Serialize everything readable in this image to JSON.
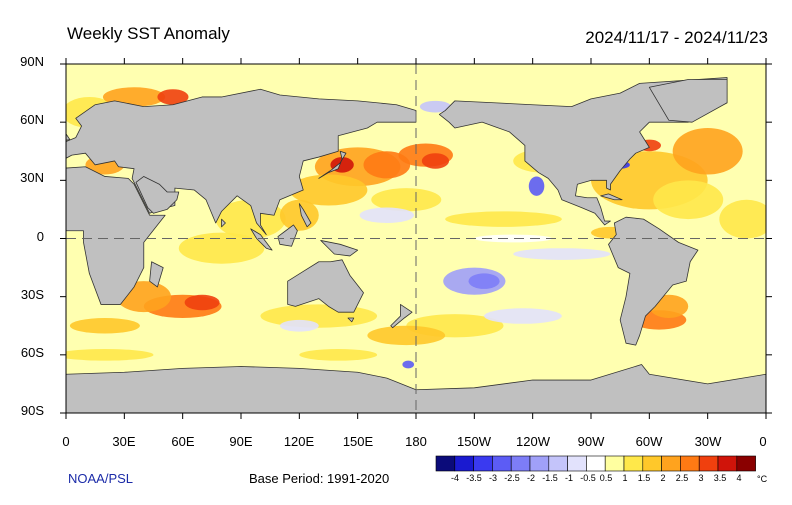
{
  "header": {
    "title": "Weekly SST Anomaly",
    "date_range": "2024/11/17 - 2024/11/23"
  },
  "axes": {
    "y_ticks": [
      "90N",
      "60N",
      "30N",
      "0",
      "30S",
      "60S",
      "90S"
    ],
    "x_ticks": [
      "0",
      "30E",
      "60E",
      "90E",
      "120E",
      "150E",
      "180",
      "150W",
      "120W",
      "90W",
      "60W",
      "30W",
      "0"
    ],
    "lon_range": [
      0,
      360
    ],
    "lat_range": [
      -90,
      90
    ]
  },
  "footer": {
    "credit": "NOAA/PSL",
    "base_period": "Base Period: 1991-2020"
  },
  "colorbar": {
    "labels": [
      "-4",
      "-3.5",
      "-3",
      "-2.5",
      "-2",
      "-1.5",
      "-1",
      "-0.5",
      "0.5",
      "1",
      "1.5",
      "2",
      "2.5",
      "3",
      "3.5",
      "4"
    ],
    "colors": [
      "#0b0b7a",
      "#1a1ad0",
      "#3a3af0",
      "#5c5cf5",
      "#7d7df7",
      "#a0a0f8",
      "#c4c4fa",
      "#e2e2fc",
      "#ffffff",
      "#ffffa0",
      "#ffe84a",
      "#ffc82a",
      "#ffa31e",
      "#ff7a14",
      "#f0400e",
      "#d0140a",
      "#8a0000"
    ],
    "unit": "°C"
  },
  "map_colors": {
    "land": "#c0c0c0",
    "ocean_base": "#ffffb0"
  }
}
